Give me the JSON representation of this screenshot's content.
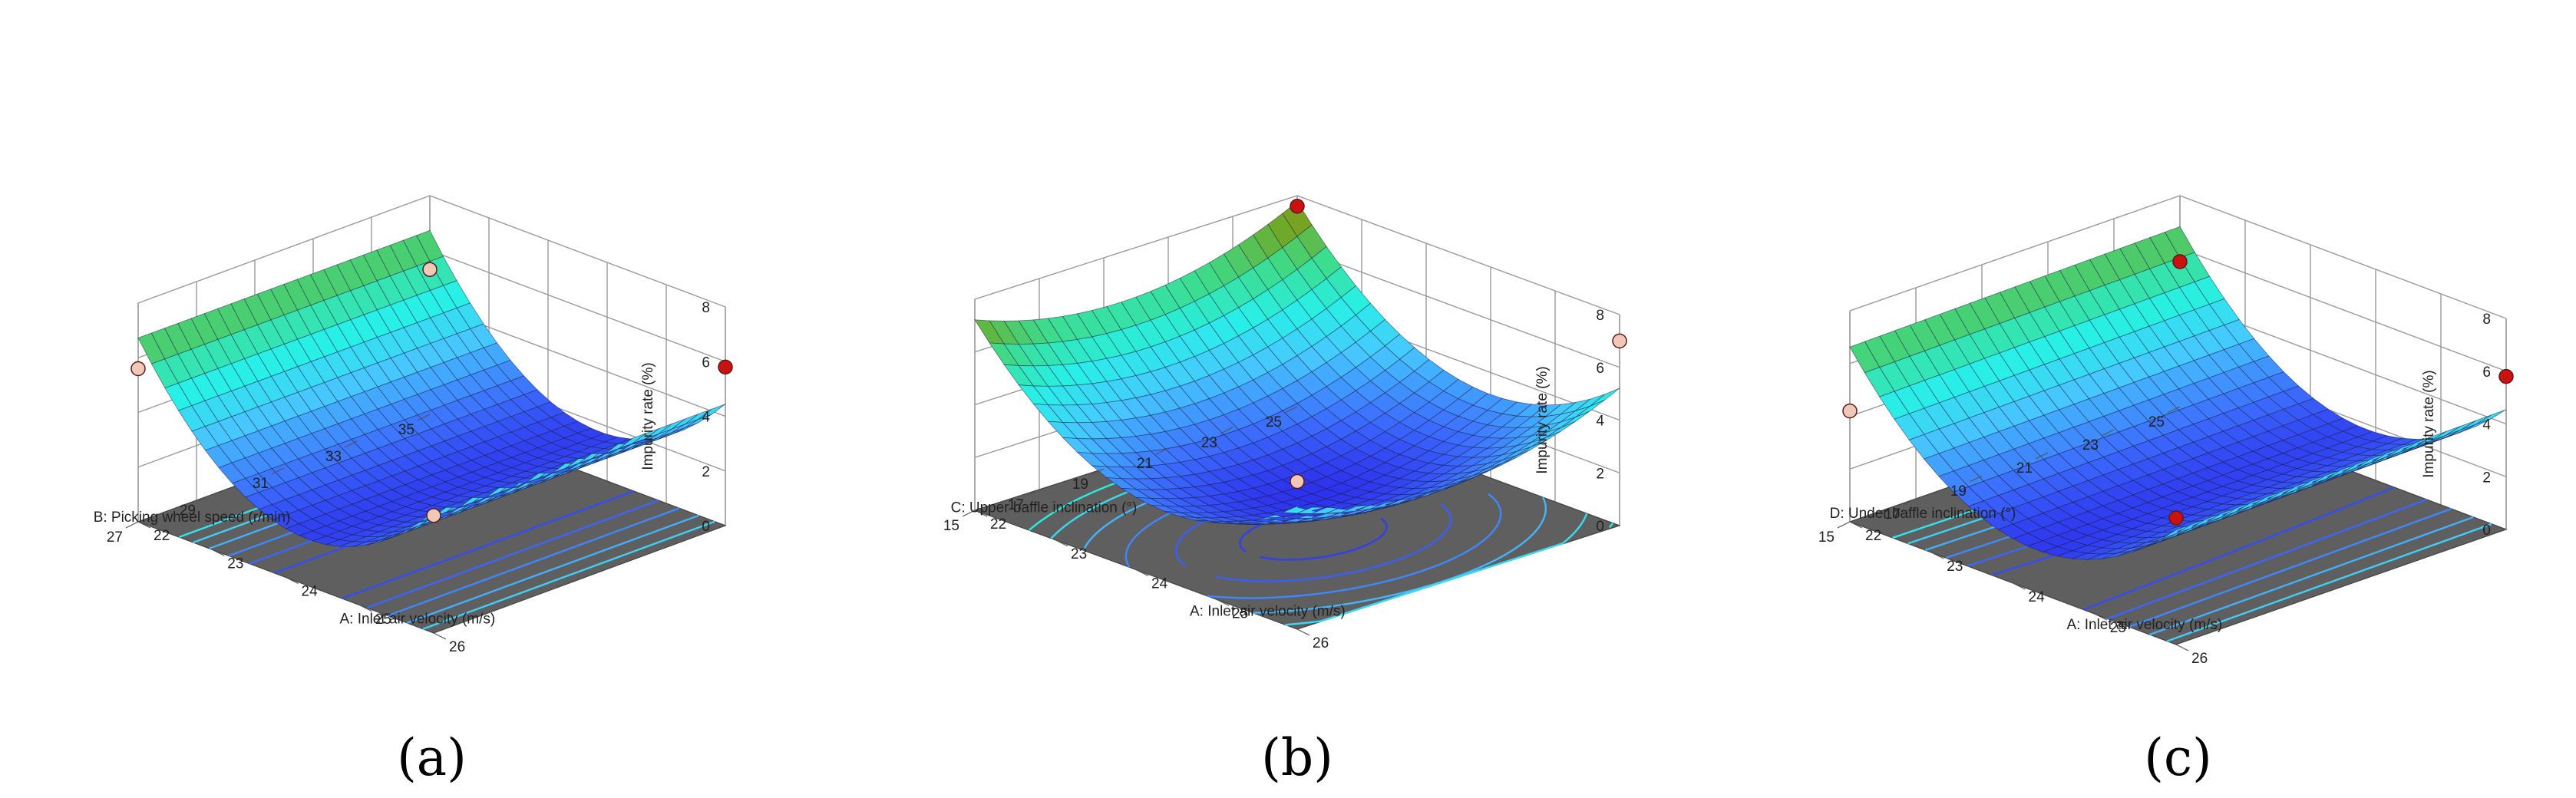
{
  "chart_data": [
    {
      "type": "surface",
      "panel_label": "(a)",
      "zlabel": "Impurity rate (%)",
      "zlim": [
        0,
        8
      ],
      "zticks": [
        "0",
        "2",
        "4",
        "6",
        "8"
      ],
      "xlabel": "A: Inlet air velocity (m/s)",
      "xlim": [
        22,
        26
      ],
      "xticks": [
        "22",
        "23",
        "24",
        "25",
        "26"
      ],
      "ylabel": "B: Picking wheel speed (r/min)",
      "ylim": [
        27,
        35
      ],
      "yticks": [
        "27",
        "29",
        "31",
        "33",
        "35"
      ],
      "surface": {
        "c": 1.7,
        "a": 0.95,
        "ka": 24.3,
        "b": 0,
        "kb": 31,
        "cb": 0
      },
      "contours": [
        1.9,
        2.3,
        2.8,
        3.4,
        4.0,
        4.6
      ],
      "points": [
        {
          "x": 26,
          "y": 35,
          "z": 5.8,
          "color": "#cc1111"
        },
        {
          "x": 22,
          "y": 35,
          "z": 5.3,
          "color": "#f0c8b8"
        },
        {
          "x": 22,
          "y": 27,
          "z": 5.6,
          "color": "#f0c8b8"
        },
        {
          "x": 26,
          "y": 27,
          "z": 4.3,
          "color": "#f0c8b8"
        }
      ]
    },
    {
      "type": "surface",
      "panel_label": "(b)",
      "zlabel": "Impurity rate (%)",
      "zlim": [
        0,
        8
      ],
      "zticks": [
        "0",
        "2",
        "4",
        "6",
        "8"
      ],
      "xlabel": "A: Inlet air velocity (m/s)",
      "xlim": [
        22,
        26
      ],
      "xticks": [
        "22",
        "23",
        "24",
        "25",
        "26"
      ],
      "ylabel": "C: Upper baffle inclination (°)",
      "ylim": [
        15,
        25
      ],
      "yticks": [
        "15",
        "17",
        "19",
        "21",
        "23",
        "25"
      ],
      "surface": {
        "c": 1.5,
        "a": 0.8,
        "ka": 24.4,
        "b": 0.055,
        "kb": 19.5,
        "cb": 0
      },
      "contours": [
        1.7,
        2.2,
        2.8,
        3.5,
        4.3,
        5.0
      ],
      "points": [
        {
          "x": 22,
          "y": 25,
          "z": 7.6,
          "color": "#cc1111"
        },
        {
          "x": 26,
          "y": 25,
          "z": 7.0,
          "color": "#f0c8b8"
        },
        {
          "x": 26,
          "y": 15,
          "z": 5.6,
          "color": "#f0c8b8"
        }
      ]
    },
    {
      "type": "surface",
      "panel_label": "(c)",
      "zlabel": "Impurity rate (%)",
      "zlim": [
        0,
        8
      ],
      "zticks": [
        "0",
        "2",
        "4",
        "6",
        "8"
      ],
      "xlabel": "A: Inlet air velocity (m/s)",
      "xlim": [
        22,
        26
      ],
      "xticks": [
        "22",
        "23",
        "24",
        "25",
        "26"
      ],
      "ylabel": "D: Under baffle inclination (°)",
      "ylim": [
        15,
        25
      ],
      "yticks": [
        "15",
        "17",
        "19",
        "21",
        "23",
        "25"
      ],
      "surface": {
        "c": 1.7,
        "a": 0.95,
        "ka": 24.3,
        "b": 0,
        "kb": 20,
        "cb": 0.02
      },
      "contours": [
        1.9,
        2.3,
        2.8,
        3.4,
        4.0,
        4.6
      ],
      "points": [
        {
          "x": 26,
          "y": 25,
          "z": 5.8,
          "color": "#cc1111"
        },
        {
          "x": 22,
          "y": 25,
          "z": 5.5,
          "color": "#cc1111"
        },
        {
          "x": 26,
          "y": 15,
          "z": 4.8,
          "color": "#cc1111"
        },
        {
          "x": 22,
          "y": 15,
          "z": 4.2,
          "color": "#f0c8b8"
        }
      ]
    }
  ]
}
